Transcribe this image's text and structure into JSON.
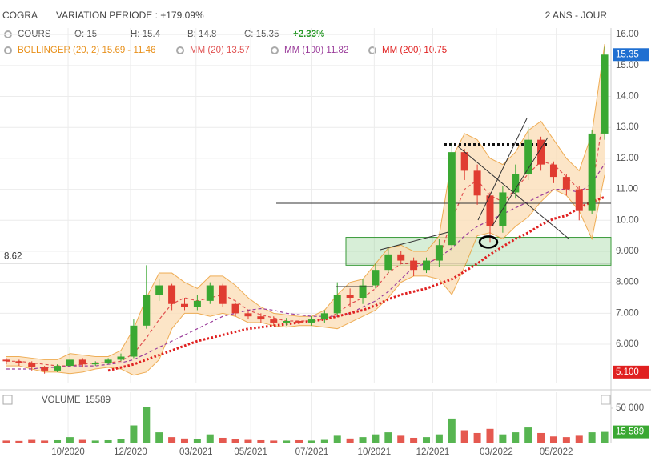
{
  "chart_data": {
    "type": "candlestick",
    "title": "COGRA",
    "subtitle": "VARIATION PERIODE : +179.09%",
    "period": "2 ANS - JOUR",
    "legend": {
      "cours": "COURS",
      "open": "O: 15",
      "high": "H: 15.4",
      "low": "B: 14.8",
      "close": "C: 15.35",
      "change": "+2.33%"
    },
    "up_color": "#3aa832",
    "down_color": "#e03c31",
    "open": [
      5.5,
      5.45,
      5.4,
      5.25,
      5.15,
      5.3,
      5.5,
      5.35,
      5.4,
      5.5,
      5.6,
      6.6,
      7.6,
      7.9,
      7.3,
      7.2,
      7.4,
      7.9,
      7.3,
      7.0,
      6.9,
      6.8,
      6.7,
      6.75,
      6.7,
      6.8,
      7.0,
      7.6,
      7.5,
      7.9,
      8.4,
      8.9,
      8.7,
      8.4,
      8.7,
      9.2,
      12.2,
      11.6,
      10.8,
      9.8,
      10.9,
      11.5,
      12.6,
      11.8,
      11.4,
      11.0,
      10.3,
      12.8
    ],
    "high": [
      5.55,
      5.5,
      5.45,
      5.3,
      5.35,
      5.9,
      5.55,
      5.45,
      5.55,
      5.7,
      6.8,
      8.55,
      8.1,
      7.95,
      7.5,
      7.6,
      8.0,
      7.95,
      7.35,
      7.1,
      7.0,
      6.9,
      6.85,
      6.85,
      6.9,
      7.1,
      8.0,
      7.8,
      8.1,
      8.6,
      9.1,
      9.0,
      8.8,
      8.8,
      9.4,
      12.5,
      12.3,
      11.8,
      10.9,
      11.1,
      11.8,
      13.0,
      12.7,
      11.9,
      11.5,
      11.1,
      12.9,
      15.6
    ],
    "low": [
      5.35,
      5.3,
      5.15,
      5.05,
      5.1,
      5.25,
      5.25,
      5.3,
      5.35,
      5.45,
      5.55,
      6.5,
      7.4,
      7.1,
      7.1,
      7.1,
      7.3,
      7.2,
      6.9,
      6.8,
      6.7,
      6.6,
      6.6,
      6.6,
      6.6,
      6.7,
      6.95,
      7.2,
      7.3,
      7.8,
      8.3,
      8.6,
      8.2,
      8.3,
      8.5,
      9.0,
      11.3,
      10.5,
      9.3,
      9.6,
      10.7,
      11.3,
      11.6,
      11.2,
      10.8,
      10.0,
      10.2,
      12.6
    ],
    "close": [
      5.45,
      5.4,
      5.25,
      5.15,
      5.3,
      5.5,
      5.35,
      5.4,
      5.5,
      5.6,
      6.6,
      7.6,
      7.9,
      7.3,
      7.2,
      7.4,
      7.9,
      7.3,
      7.0,
      6.9,
      6.8,
      6.7,
      6.75,
      6.7,
      6.8,
      7.0,
      7.6,
      7.5,
      7.9,
      8.4,
      8.9,
      8.7,
      8.4,
      8.7,
      9.2,
      12.2,
      11.6,
      10.8,
      9.8,
      10.9,
      11.5,
      12.6,
      11.8,
      11.4,
      11.0,
      10.3,
      12.8,
      15.35
    ],
    "bollinger": {
      "name": "BOLLINGER (20, 2) 15.69 - 11.46",
      "color": "#e8901a",
      "fill": "#fbdcb4",
      "upper": [
        5.6,
        5.6,
        5.55,
        5.5,
        5.5,
        5.7,
        5.65,
        5.6,
        5.6,
        5.8,
        6.5,
        7.5,
        8.3,
        8.3,
        8.0,
        7.8,
        8.2,
        8.2,
        7.9,
        7.5,
        7.2,
        7.0,
        6.95,
        6.9,
        6.9,
        7.1,
        7.6,
        8.0,
        8.1,
        8.6,
        9.1,
        9.2,
        9.0,
        9.0,
        9.5,
        12.0,
        12.8,
        12.6,
        12.0,
        11.8,
        12.2,
        12.9,
        13.2,
        12.6,
        12.0,
        11.6,
        12.8,
        15.69
      ],
      "lower": [
        5.3,
        5.3,
        5.2,
        5.1,
        5.1,
        5.05,
        5.1,
        5.2,
        5.25,
        5.2,
        5.0,
        5.1,
        5.5,
        6.5,
        7.0,
        7.0,
        6.9,
        7.0,
        6.9,
        6.7,
        6.7,
        6.6,
        6.55,
        6.6,
        6.6,
        6.55,
        6.5,
        6.7,
        6.9,
        7.1,
        7.5,
        8.0,
        8.2,
        8.2,
        8.1,
        7.6,
        8.5,
        9.5,
        9.6,
        9.4,
        9.8,
        10.1,
        10.6,
        11.0,
        10.8,
        10.3,
        9.4,
        11.46
      ]
    },
    "series": [
      {
        "name": "MM (20) 13.57",
        "color": "#e05050",
        "dash": "4 3",
        "width": 1.2,
        "values": [
          5.45,
          5.45,
          5.4,
          5.35,
          5.3,
          5.3,
          5.35,
          5.4,
          5.4,
          5.45,
          5.7,
          6.2,
          6.8,
          7.3,
          7.5,
          7.4,
          7.5,
          7.6,
          7.4,
          7.1,
          6.95,
          6.85,
          6.75,
          6.75,
          6.75,
          6.8,
          7.0,
          7.3,
          7.5,
          7.8,
          8.3,
          8.6,
          8.6,
          8.6,
          8.8,
          10.0,
          11.0,
          11.3,
          10.8,
          10.6,
          11.0,
          11.5,
          11.9,
          11.8,
          11.4,
          11.0,
          11.0,
          13.57
        ]
      },
      {
        "name": "MM (100) 11.82",
        "color": "#9b3d9b",
        "dash": "4 3",
        "width": 1.2,
        "values": [
          5.2,
          5.2,
          5.2,
          5.25,
          5.25,
          5.3,
          5.3,
          5.3,
          5.35,
          5.4,
          5.5,
          5.7,
          5.9,
          6.1,
          6.3,
          6.5,
          6.7,
          6.9,
          7.0,
          7.1,
          7.15,
          7.1,
          7.0,
          6.95,
          6.9,
          6.9,
          6.9,
          7.0,
          7.2,
          7.4,
          7.7,
          8.1,
          8.5,
          8.6,
          8.8,
          9.1,
          9.5,
          9.8,
          10.0,
          10.2,
          10.4,
          10.6,
          10.8,
          11.0,
          11.0,
          10.9,
          11.2,
          11.82
        ]
      },
      {
        "name": "MM (200) 10.75",
        "color": "#e02020",
        "dash": "2.5 2.5",
        "width": 3,
        "values": [
          null,
          null,
          null,
          null,
          null,
          null,
          null,
          null,
          5.15,
          5.25,
          5.35,
          5.5,
          5.65,
          5.8,
          5.95,
          6.1,
          6.2,
          6.3,
          6.4,
          6.5,
          6.55,
          6.6,
          6.65,
          6.7,
          6.75,
          6.8,
          6.9,
          7.0,
          7.1,
          7.25,
          7.45,
          7.6,
          7.7,
          7.8,
          7.95,
          8.1,
          8.35,
          8.6,
          8.9,
          9.15,
          9.4,
          9.6,
          9.85,
          10.05,
          10.15,
          10.4,
          10.6,
          10.75
        ]
      }
    ],
    "ylim": [
      4.76,
      16.21
    ],
    "yticks": [
      {
        "value": 6,
        "label": "6.000"
      },
      {
        "value": 7,
        "label": "7.000"
      },
      {
        "value": 8,
        "label": "8.000"
      },
      {
        "value": 9,
        "label": "9.000"
      },
      {
        "value": 10,
        "label": "10.00"
      },
      {
        "value": 11,
        "label": "11.00"
      },
      {
        "value": 12,
        "label": "12.00"
      },
      {
        "value": 13,
        "label": "13.00"
      },
      {
        "value": 14,
        "label": "14.00"
      },
      {
        "value": 15,
        "label": "15.00"
      },
      {
        "value": 16,
        "label": "16.00"
      }
    ],
    "xticks": [
      {
        "value": 4.85,
        "label": "10/2020"
      },
      {
        "value": 9.75,
        "label": "12/2020"
      },
      {
        "value": 14.9,
        "label": "03/2021"
      },
      {
        "value": 19.2,
        "label": "05/2021"
      },
      {
        "value": 24.0,
        "label": "07/2021"
      },
      {
        "value": 28.9,
        "label": "10/2021"
      },
      {
        "value": 33.5,
        "label": "12/2021"
      },
      {
        "value": 38.5,
        "label": "03/2022"
      },
      {
        "value": 43.2,
        "label": "05/2022"
      }
    ],
    "grid": true,
    "support": {
      "value": 8.62,
      "label": "8.62"
    },
    "level": 10.55,
    "resistance": 12.45,
    "zone": [
      8.55,
      9.45
    ],
    "reference": {
      "value": 5.1,
      "label": "5.100"
    },
    "volume": {
      "name": "VOLUME",
      "last_label": "15 589",
      "ylim": [
        0,
        60000
      ],
      "yticks": [
        {
          "value": 50000,
          "label": "50 000"
        }
      ],
      "values": [
        3000,
        2500,
        4000,
        3000,
        3500,
        8000,
        4000,
        3000,
        3500,
        5000,
        25000,
        52000,
        15000,
        8000,
        6000,
        5000,
        12000,
        7000,
        5000,
        4000,
        3500,
        3000,
        3000,
        3500,
        3000,
        4000,
        10000,
        6000,
        8000,
        12000,
        15000,
        10000,
        7000,
        8000,
        12000,
        35000,
        18000,
        14000,
        20000,
        12000,
        15000,
        22000,
        14000,
        9000,
        8000,
        10000,
        15000,
        15589
      ]
    }
  }
}
